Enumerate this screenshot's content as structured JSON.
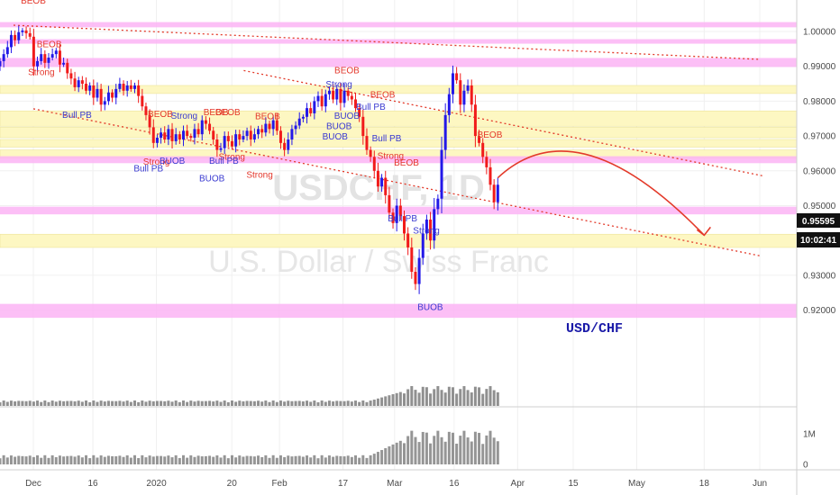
{
  "chart_data": {
    "type": "candlestick",
    "symbol_watermark": "USDCHF, 1D",
    "description_watermark": "U.S. Dollar / Swiss Franc",
    "annotation": "USD/CHF",
    "y_axis": {
      "ticks": [
        "1.00000",
        "0.99000",
        "0.98000",
        "0.97000",
        "0.96000",
        "0.95000",
        "0.94000",
        "0.93000",
        "0.92000"
      ],
      "tick_values": [
        1.0,
        0.99,
        0.98,
        0.97,
        0.96,
        0.95,
        0.94,
        0.93,
        0.92
      ],
      "range": [
        0.9125,
        1.0045
      ]
    },
    "volume_axis": {
      "ticks": [
        "1M",
        "0"
      ],
      "tick_values": [
        1000000,
        0
      ],
      "range": [
        0,
        1800000
      ]
    },
    "x_axis": {
      "tick_labels": [
        "Dec",
        "16",
        "2020",
        "20",
        "Feb",
        "17",
        "Mar",
        "16",
        "Apr",
        "15",
        "May",
        "18",
        "Jun"
      ],
      "tick_dates": [
        "2019-12-01",
        "2019-12-16",
        "2020-01-01",
        "2020-01-20",
        "2020-02-01",
        "2020-02-17",
        "2020-03-01",
        "2020-03-16",
        "2020-04-01",
        "2020-04-15",
        "2020-05-01",
        "2020-05-18",
        "2020-06-01"
      ]
    },
    "current_price": "0.95595",
    "countdown": "10:02:41",
    "colors": {
      "up": "#2318e8",
      "down": "#f11b1b",
      "zone_pink": "#fbb4f4",
      "zone_yellow": "#fdf7c2",
      "trend": "#e33a2a"
    },
    "zones_pink": [
      [
        1.0012,
        1.0027
      ],
      [
        0.9965,
        0.9978
      ],
      [
        0.9898,
        0.9924
      ],
      [
        0.9622,
        0.9642
      ],
      [
        0.9475,
        0.9497
      ],
      [
        0.9178,
        0.9218
      ]
    ],
    "zones_yellow": [
      [
        0.9822,
        0.9845
      ],
      [
        0.9728,
        0.9772
      ],
      [
        0.9695,
        0.9725
      ],
      [
        0.9668,
        0.969
      ],
      [
        0.9636,
        0.966
      ],
      [
        0.938,
        0.9418
      ]
    ],
    "trendlines": [
      {
        "from": [
          "2019-11-26",
          1.0018
        ],
        "to": [
          "2020-06-01",
          0.992
        ]
      },
      {
        "from": [
          "2020-01-23",
          0.9888
        ],
        "to": [
          "2020-06-02",
          0.9585
        ]
      },
      {
        "from": [
          "2019-12-01",
          0.9778
        ],
        "to": [
          "2020-06-01",
          0.9356
        ]
      }
    ],
    "projection": {
      "from": [
        "2020-03-27",
        0.958
      ],
      "peak": [
        "2020-04-16",
        0.9715
      ],
      "to": [
        "2020-05-18",
        0.9415
      ]
    },
    "signals": [
      {
        "text": "BEOB",
        "date": "2019-12-01",
        "price": 1.008,
        "kind": "bear"
      },
      {
        "text": "BEOB",
        "date": "2019-12-05",
        "price": 0.9955,
        "kind": "bear"
      },
      {
        "text": "Strong",
        "date": "2019-12-03",
        "price": 0.9875,
        "kind": "bear"
      },
      {
        "text": "Bull PB",
        "date": "2019-12-12",
        "price": 0.9752,
        "kind": "bull"
      },
      {
        "text": "BEOB",
        "date": "2020-01-02",
        "price": 0.9755,
        "kind": "bear"
      },
      {
        "text": "Strong",
        "date": "2020-01-08",
        "price": 0.975,
        "kind": "bull"
      },
      {
        "text": "Strong",
        "date": "2020-01-01",
        "price": 0.9618,
        "kind": "bear"
      },
      {
        "text": "BUOB",
        "date": "2020-01-05",
        "price": 0.962,
        "kind": "bull"
      },
      {
        "text": "Bull PB",
        "date": "2019-12-30",
        "price": 0.9598,
        "kind": "bull"
      },
      {
        "text": "BEOB",
        "date": "2020-01-16",
        "price": 0.976,
        "kind": "bear"
      },
      {
        "text": "BEOB",
        "date": "2020-01-19",
        "price": 0.976,
        "kind": "bear"
      },
      {
        "text": "Strong",
        "date": "2020-01-20",
        "price": 0.9632,
        "kind": "bear"
      },
      {
        "text": "Bull PB",
        "date": "2020-01-18",
        "price": 0.962,
        "kind": "bull"
      },
      {
        "text": "BUOB",
        "date": "2020-01-15",
        "price": 0.957,
        "kind": "bull"
      },
      {
        "text": "Strong",
        "date": "2020-01-27",
        "price": 0.958,
        "kind": "bear"
      },
      {
        "text": "BEOB",
        "date": "2020-01-29",
        "price": 0.9748,
        "kind": "bear"
      },
      {
        "text": "BEOB",
        "date": "2020-02-18",
        "price": 0.988,
        "kind": "bear"
      },
      {
        "text": "Strong",
        "date": "2020-02-16",
        "price": 0.984,
        "kind": "bull"
      },
      {
        "text": "BUOB",
        "date": "2020-02-18",
        "price": 0.975,
        "kind": "bull"
      },
      {
        "text": "BUOB",
        "date": "2020-02-16",
        "price": 0.972,
        "kind": "bull"
      },
      {
        "text": "BUOB",
        "date": "2020-02-15",
        "price": 0.969,
        "kind": "bull"
      },
      {
        "text": "Bull PB",
        "date": "2020-02-24",
        "price": 0.9775,
        "kind": "bull"
      },
      {
        "text": "BEOB",
        "date": "2020-02-27",
        "price": 0.981,
        "kind": "bear"
      },
      {
        "text": "Bull PB",
        "date": "2020-02-28",
        "price": 0.9685,
        "kind": "bull"
      },
      {
        "text": "Strong",
        "date": "2020-02-29",
        "price": 0.9635,
        "kind": "bear"
      },
      {
        "text": "BEOB",
        "date": "2020-03-04",
        "price": 0.9615,
        "kind": "bear"
      },
      {
        "text": "Bull PB",
        "date": "2020-03-03",
        "price": 0.9455,
        "kind": "bull"
      },
      {
        "text": "Strong",
        "date": "2020-03-09",
        "price": 0.942,
        "kind": "bull"
      },
      {
        "text": "BUOB",
        "date": "2020-03-10",
        "price": 0.92,
        "kind": "bull"
      },
      {
        "text": "BEOB",
        "date": "2020-03-25",
        "price": 0.9695,
        "kind": "bear"
      }
    ],
    "grid": true,
    "legend": "none"
  }
}
